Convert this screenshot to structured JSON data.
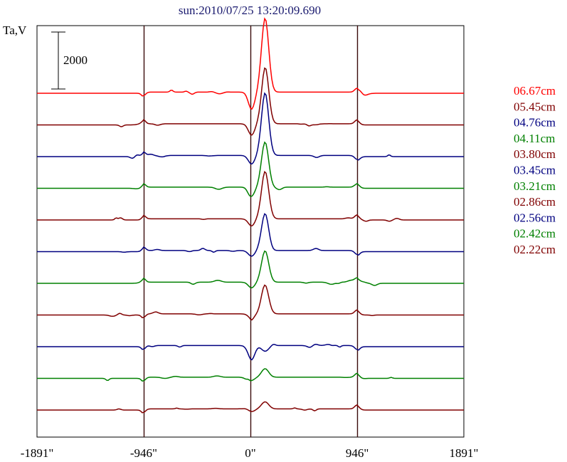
{
  "chart_data": {
    "type": "line",
    "title": "sun:2010/07/25 13:20:09.690",
    "ylabel": "Ta,V",
    "scale_bar_label": "2000",
    "xlim": [
      -1891,
      1891
    ],
    "x_ticks": [
      {
        "value": -1891,
        "label": "-1891\""
      },
      {
        "value": -946,
        "label": "-946\""
      },
      {
        "value": 0,
        "label": "0\""
      },
      {
        "value": 946,
        "label": "946\""
      },
      {
        "value": 1891,
        "label": "1891\""
      }
    ],
    "vertical_lines_at": [
      -946,
      0,
      946
    ],
    "grid": false,
    "legend_position": "right",
    "series": [
      {
        "name": "06.67cm",
        "color": "#ff0000",
        "peak": 2600,
        "dip": -600
      },
      {
        "name": "05.45cm",
        "color": "#800000",
        "peak": 2000,
        "dip": -400
      },
      {
        "name": "04.76cm",
        "color": "#000080",
        "peak": 2200,
        "dip": -300
      },
      {
        "name": "04.11cm",
        "color": "#008000",
        "peak": 1600,
        "dip": -300
      },
      {
        "name": "03.80cm",
        "color": "#800000",
        "peak": 1700,
        "dip": -250
      },
      {
        "name": "03.45cm",
        "color": "#000080",
        "peak": 1300,
        "dip": -200
      },
      {
        "name": "03.21cm",
        "color": "#008000",
        "peak": 1100,
        "dip": -200
      },
      {
        "name": "02.86cm",
        "color": "#800000",
        "peak": 1000,
        "dip": -150
      },
      {
        "name": "02.56cm",
        "color": "#000080",
        "peak": -200,
        "dip": -500
      },
      {
        "name": "02.42cm",
        "color": "#008000",
        "peak": 300,
        "dip": -100
      },
      {
        "name": "02.22cm",
        "color": "#800000",
        "peak": 250,
        "dip": -100
      }
    ]
  }
}
